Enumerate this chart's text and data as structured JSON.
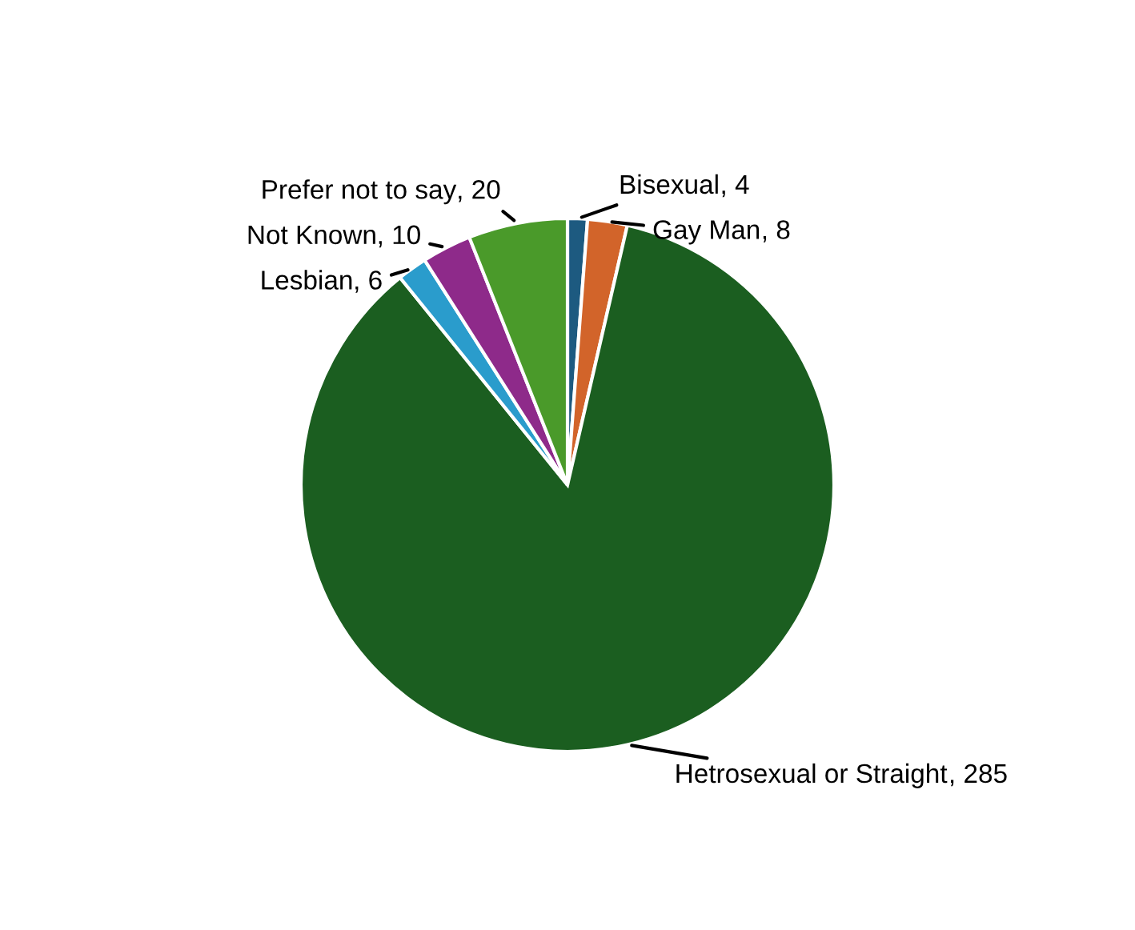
{
  "chart_data": {
    "type": "pie",
    "categories": [
      "Bisexual",
      "Gay Man",
      "Hetrosexual or Straight",
      "Lesbian",
      "Not Known",
      "Prefer not to say"
    ],
    "values": [
      4,
      8,
      285,
      6,
      10,
      20
    ],
    "colors": [
      "#1d5a80",
      "#d2642a",
      "#1b5e20",
      "#2a9ccc",
      "#8e2a8a",
      "#4a9a2a"
    ],
    "value_labels": [
      ", 4",
      ", 8",
      ", 285",
      ", 6",
      ", 10",
      ", 20"
    ],
    "legend": false
  }
}
